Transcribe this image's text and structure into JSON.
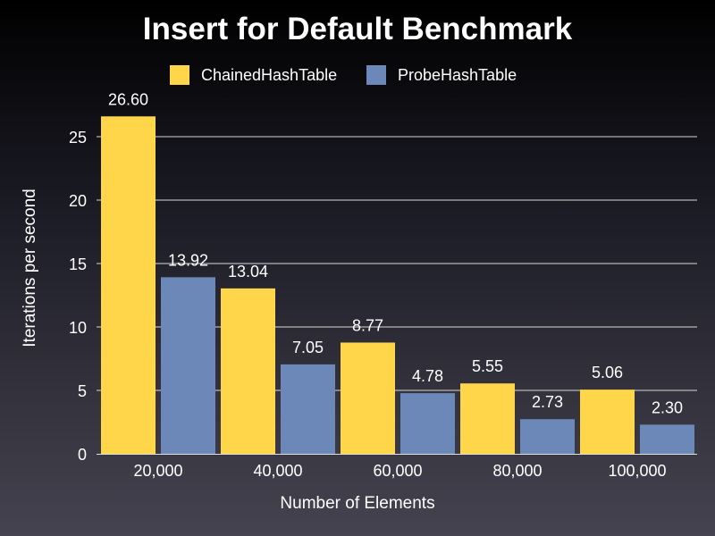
{
  "chart_data": {
    "type": "bar",
    "title": "Insert for Default Benchmark",
    "xlabel": "Number of Elements",
    "ylabel": "Iterations per second",
    "categories": [
      "20,000",
      "40,000",
      "60,000",
      "80,000",
      "100,000"
    ],
    "series": [
      {
        "name": "ChainedHashTable",
        "color": "#ffd64a",
        "values": [
          26.6,
          13.04,
          8.77,
          5.55,
          5.06
        ],
        "labels": [
          "26.60",
          "13.04",
          "8.77",
          "5.55",
          "5.06"
        ]
      },
      {
        "name": "ProbeHashTable",
        "color": "#6b88b8",
        "values": [
          13.92,
          7.05,
          4.78,
          2.73,
          2.3
        ],
        "labels": [
          "13.92",
          "7.05",
          "4.78",
          "2.73",
          "2.30"
        ]
      }
    ],
    "ylim": [
      0,
      25
    ],
    "yticks": [
      0,
      5,
      10,
      15,
      20,
      25
    ],
    "grid": true,
    "legend_position": "top"
  }
}
